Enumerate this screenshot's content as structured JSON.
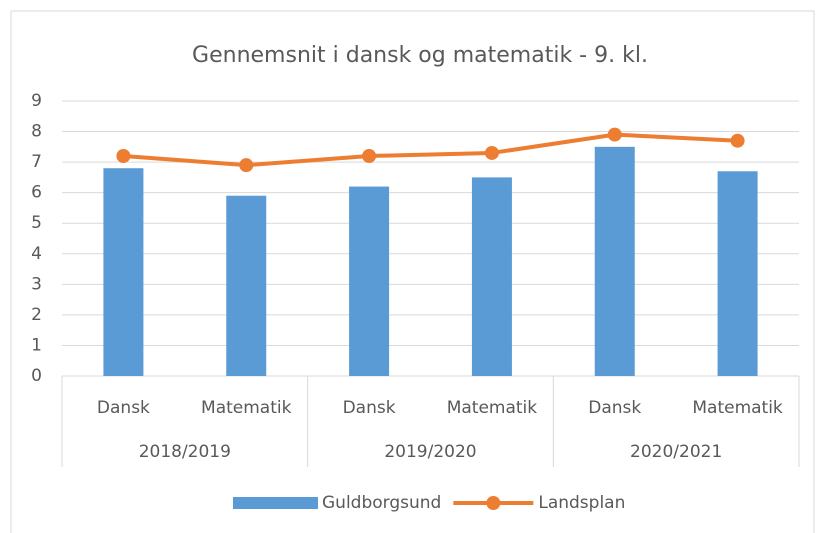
{
  "chart_data": {
    "type": "combo",
    "title": "Gennemsnit i dansk og matematik  - 9. kl.",
    "category_groups": [
      {
        "name": "2018/2019",
        "categories": [
          "Dansk",
          "Matematik"
        ]
      },
      {
        "name": "2019/2020",
        "categories": [
          "Dansk",
          "Matematik"
        ]
      },
      {
        "name": "2020/2021",
        "categories": [
          "Dansk",
          "Matematik"
        ]
      }
    ],
    "series": [
      {
        "name": "Guldborgsund",
        "type": "bar",
        "color": "#5b9bd5",
        "values": [
          6.8,
          5.9,
          6.2,
          6.5,
          7.5,
          6.7
        ]
      },
      {
        "name": "Landsplan",
        "type": "line",
        "color": "#ed7d31",
        "values": [
          7.2,
          6.9,
          7.2,
          7.3,
          7.9,
          7.7
        ]
      }
    ],
    "ylim": [
      0,
      9
    ],
    "yticks": [
      0,
      1,
      2,
      3,
      4,
      5,
      6,
      7,
      8,
      9
    ],
    "grid": true,
    "legend": "bottom"
  }
}
